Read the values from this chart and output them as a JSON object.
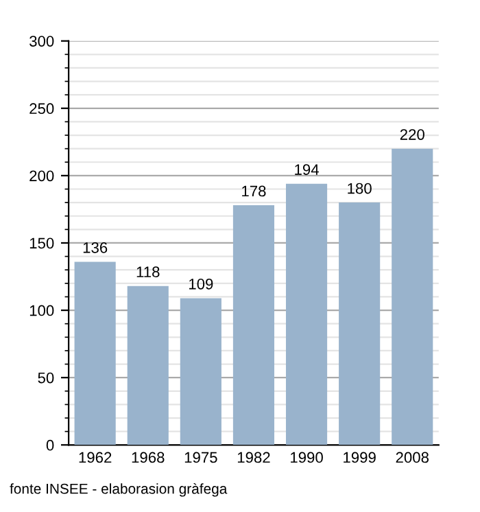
{
  "chart_data": {
    "type": "bar",
    "categories": [
      "1962",
      "1968",
      "1975",
      "1982",
      "1990",
      "1999",
      "2008"
    ],
    "values": [
      136,
      118,
      109,
      178,
      194,
      180,
      220
    ],
    "color": "#99b3cc",
    "ylim": [
      0,
      300
    ],
    "yticks": [
      0,
      50,
      100,
      150,
      200,
      250,
      300
    ],
    "grid": "y",
    "data_labels": true,
    "annotations": [
      "fonte INSEE - elaborasion gràfega"
    ]
  }
}
